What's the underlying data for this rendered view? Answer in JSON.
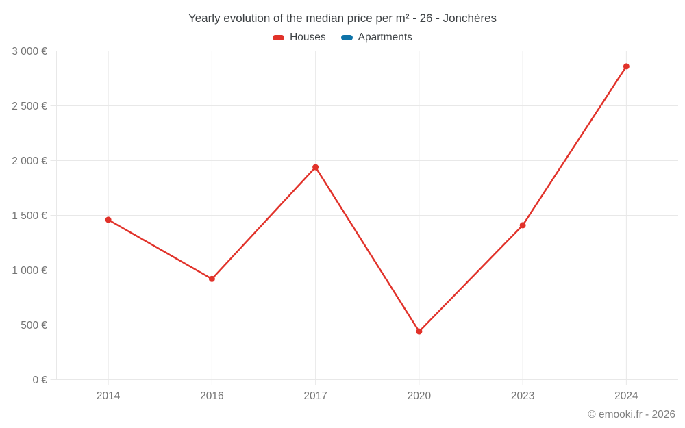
{
  "page": {
    "title": "Yearly evolution of the median price per m² - 26 - Jonchères",
    "footer": "© emooki.fr - 2026"
  },
  "legend": {
    "items": [
      {
        "label": "Houses",
        "color": "#e1322a"
      },
      {
        "label": "Apartments",
        "color": "#0e73a8"
      }
    ]
  },
  "chart_data": {
    "type": "line",
    "title": "Yearly evolution of the median price per m² - 26 - Jonchères",
    "categories": [
      "2014",
      "2016",
      "2017",
      "2020",
      "2023",
      "2024"
    ],
    "series": [
      {
        "name": "Houses",
        "color": "#e1322a",
        "values": [
          1460,
          920,
          1940,
          440,
          1410,
          2860
        ]
      },
      {
        "name": "Apartments",
        "color": "#0e73a8",
        "values": []
      }
    ],
    "xlabel": "",
    "ylabel": "",
    "ylim": [
      0,
      3000
    ],
    "ytick_step": 500,
    "ytick_suffix": " €",
    "thousands_separator": " ",
    "grid": true,
    "legend_position": "top"
  },
  "colors": {
    "houses": "#e1322a",
    "apartments": "#0e73a8",
    "grid": "#e8e8e8",
    "tick_label": "#757575",
    "title_text": "#3c4043",
    "footer_text": "#808080",
    "background": "#ffffff"
  }
}
